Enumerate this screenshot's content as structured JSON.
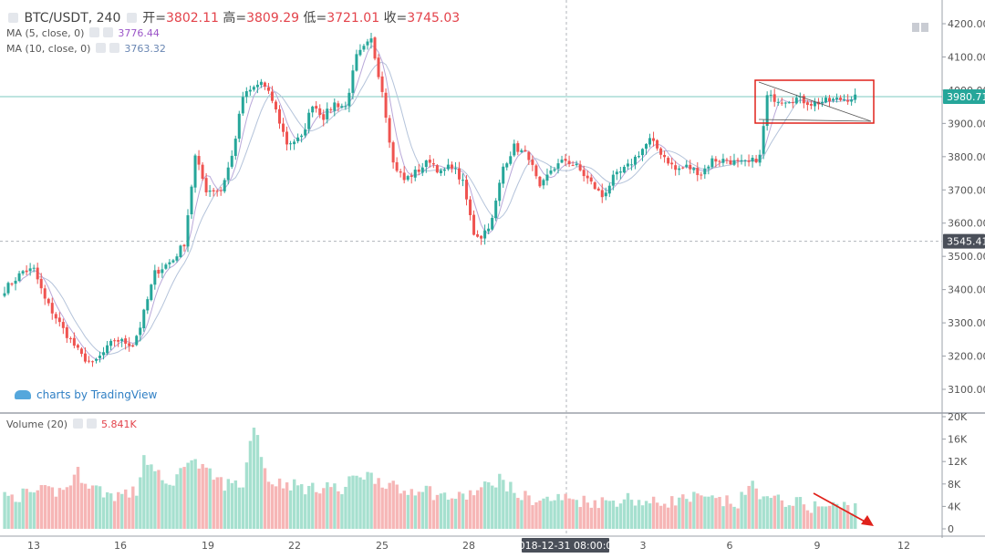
{
  "legend": {
    "symbol": "BTC/USDT, 240",
    "open_label": "开=",
    "open": "3802.11",
    "high_label": "高=",
    "high": "3809.29",
    "low_label": "低=",
    "low": "3721.01",
    "close_label": "收=",
    "close": "3745.03",
    "ma5_label": "MA (5, close, 0)",
    "ma5_value": "3776.44",
    "ma10_label": "MA (10, close, 0)",
    "ma10_value": "3763.32",
    "volume_label": "Volume (20)",
    "volume_value": "5.841K"
  },
  "watermark": "charts by TradingView",
  "crosshair_time": "2018-12-31 08:00:00",
  "colors": {
    "up": "#26a69a",
    "down": "#ef5350",
    "annotation": "#e0221b",
    "ma5": "#b9a8d9",
    "ma10": "#b4c3da"
  },
  "chart_data": {
    "type": "candlestick",
    "title": "BTC/USDT, 240",
    "price_axis": {
      "ticks": [
        3100,
        3200,
        3300,
        3400,
        3500,
        3600,
        3700,
        3800,
        3900,
        4000,
        4100,
        4200
      ],
      "tick_labels": [
        "3100.00",
        "3200.00",
        "3300.00",
        "3400.00",
        "3500.00",
        "3600.00",
        "3700.00",
        "3800.00",
        "3900.00",
        "4000.00",
        "4100.00",
        "4200.00"
      ],
      "ylim": [
        3090,
        4230
      ]
    },
    "volume_axis": {
      "tick_labels": [
        "0",
        "4K",
        "8K",
        "12K",
        "16K",
        "20K"
      ],
      "ticks": [
        0,
        4000,
        8000,
        12000,
        16000,
        20000
      ],
      "ylim": [
        0,
        20000
      ]
    },
    "x_axis": {
      "tick_labels": [
        "13",
        "16",
        "19",
        "22",
        "25",
        "28",
        "3",
        "6",
        "9",
        "12"
      ]
    },
    "price_labels": {
      "last": "3980.71",
      "crosshair": "3545.41"
    },
    "anchors": [
      [
        0,
        3400
      ],
      [
        5,
        3455
      ],
      [
        8,
        3460
      ],
      [
        11,
        3370
      ],
      [
        16,
        3280
      ],
      [
        21,
        3200
      ],
      [
        24,
        3175
      ],
      [
        27,
        3210
      ],
      [
        30,
        3250
      ],
      [
        35,
        3235
      ],
      [
        37,
        3290
      ],
      [
        41,
        3450
      ],
      [
        46,
        3490
      ],
      [
        49,
        3540
      ],
      [
        52,
        3800
      ],
      [
        55,
        3700
      ],
      [
        59,
        3700
      ],
      [
        62,
        3800
      ],
      [
        65,
        3980
      ],
      [
        70,
        4025
      ],
      [
        73,
        3970
      ],
      [
        77,
        3840
      ],
      [
        81,
        3855
      ],
      [
        84,
        3960
      ],
      [
        87,
        3920
      ],
      [
        90,
        3960
      ],
      [
        93,
        3950
      ],
      [
        96,
        4100
      ],
      [
        100,
        4150
      ],
      [
        103,
        4000
      ],
      [
        106,
        3780
      ],
      [
        109,
        3730
      ],
      [
        113,
        3760
      ],
      [
        116,
        3790
      ],
      [
        119,
        3750
      ],
      [
        122,
        3775
      ],
      [
        125,
        3720
      ],
      [
        128,
        3570
      ],
      [
        130,
        3560
      ],
      [
        133,
        3610
      ],
      [
        136,
        3770
      ],
      [
        139,
        3830
      ],
      [
        143,
        3800
      ],
      [
        146,
        3700
      ],
      [
        149,
        3760
      ],
      [
        153,
        3790
      ],
      [
        156,
        3770
      ],
      [
        160,
        3720
      ],
      [
        163,
        3680
      ],
      [
        166,
        3735
      ],
      [
        170,
        3770
      ],
      [
        173,
        3810
      ],
      [
        176,
        3850
      ],
      [
        180,
        3800
      ],
      [
        183,
        3760
      ],
      [
        186,
        3770
      ],
      [
        190,
        3750
      ],
      [
        193,
        3790
      ],
      [
        197,
        3790
      ],
      [
        200,
        3780
      ],
      [
        203,
        3780
      ],
      [
        206,
        3800
      ],
      [
        208,
        3980
      ],
      [
        212,
        3970
      ],
      [
        216,
        3975
      ],
      [
        220,
        3960
      ],
      [
        223,
        3965
      ],
      [
        226,
        3970
      ],
      [
        230,
        3975
      ],
      [
        232,
        3980
      ]
    ],
    "volume_anchors": [
      [
        0,
        5.5
      ],
      [
        8,
        6.5
      ],
      [
        16,
        6.8
      ],
      [
        20,
        10
      ],
      [
        24,
        7.5
      ],
      [
        29,
        6
      ],
      [
        36,
        6.5
      ],
      [
        38,
        13
      ],
      [
        44,
        7.5
      ],
      [
        48,
        10
      ],
      [
        50,
        13
      ],
      [
        55,
        10
      ],
      [
        60,
        8
      ],
      [
        65,
        8
      ],
      [
        68,
        19
      ],
      [
        72,
        8.5
      ],
      [
        78,
        8
      ],
      [
        84,
        7
      ],
      [
        88,
        8
      ],
      [
        92,
        6.5
      ],
      [
        96,
        10
      ],
      [
        102,
        9
      ],
      [
        108,
        6.5
      ],
      [
        114,
        7.5
      ],
      [
        118,
        6
      ],
      [
        124,
        5.5
      ],
      [
        130,
        7
      ],
      [
        135,
        9
      ],
      [
        140,
        6
      ],
      [
        146,
        5
      ],
      [
        152,
        5.5
      ],
      [
        158,
        5
      ],
      [
        164,
        4.8
      ],
      [
        170,
        5.5
      ],
      [
        176,
        4.5
      ],
      [
        182,
        5
      ],
      [
        188,
        5.5
      ],
      [
        194,
        5
      ],
      [
        200,
        4.5
      ],
      [
        204,
        8
      ],
      [
        208,
        5
      ],
      [
        214,
        5
      ],
      [
        220,
        4
      ],
      [
        226,
        4
      ],
      [
        232,
        4
      ]
    ],
    "series": [
      {
        "name": "MA (5, close, 0)",
        "kind": "ma",
        "period": 5
      },
      {
        "name": "MA (10, close, 0)",
        "kind": "ma",
        "period": 10
      },
      {
        "name": "Volume (20)",
        "kind": "volume"
      }
    ],
    "annotations": [
      {
        "type": "rectangle",
        "around": "pennant near 3950-4030"
      },
      {
        "type": "arrow",
        "meaning": "declining volume"
      }
    ],
    "grid": false
  }
}
